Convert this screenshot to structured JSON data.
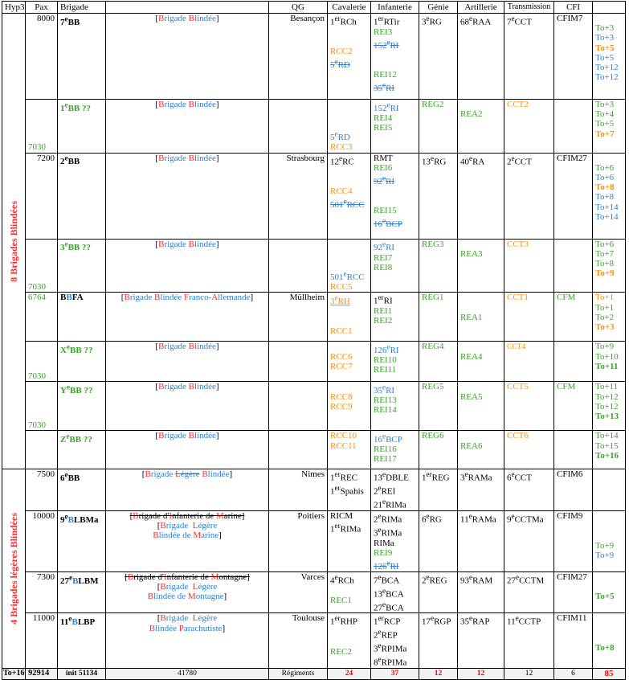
{
  "headers": [
    "Hyp3",
    "Pax",
    "Brigade",
    "",
    "QG",
    "Cavalerie",
    "Infanterie",
    "Génie",
    "Artillerie",
    "Transmission",
    "CFI",
    ""
  ],
  "side_label_8": "8 Brigades Blindées",
  "side_label_4": "4 Brigades légères Blindées",
  "rows": {
    "r7bb": {
      "pax": "8000",
      "brigade_num": "7",
      "brigade_sup": "e",
      "brigade_suf": "BB",
      "name_a": "[",
      "name_b": "Brigade",
      "name_c": "Blindée",
      "name_d": "]",
      "qg": "Besançon",
      "cav": [
        "1er RCh",
        "",
        "",
        "RCC2",
        "5e RD"
      ],
      "inf": [
        "1er RTir",
        "REI3",
        "152e RI",
        "",
        "",
        "REI12",
        "35e RI"
      ],
      "gen": [
        "3e RG"
      ],
      "art": [
        "68e RAA"
      ],
      "trans": [
        "7e CCT"
      ],
      "cfi": "CFIM7",
      "to": [
        "",
        "To+3",
        "To+3",
        "To+5",
        "To+5",
        "To+12",
        "To+12"
      ]
    },
    "r1bb": {
      "pax": "7030",
      "brigade": "1e BB ??",
      "cav": [
        "",
        "",
        "",
        "5e RD",
        "RCC3"
      ],
      "inf": [
        "152e RI",
        "REI4",
        "REI5"
      ],
      "gen": [
        "REG2"
      ],
      "art": [
        "",
        "REA2"
      ],
      "trans": [
        "CCT2"
      ],
      "to": [
        "To+3",
        "To+4",
        "To+5",
        "To+7"
      ]
    },
    "r2bb": {
      "pax": "7200",
      "brigade_num": "2",
      "brigade_sup": "e",
      "brigade_suf": "BB",
      "qg": "Strasbourg",
      "cav": [
        "12e RC",
        "",
        "",
        "RCC4",
        "501e RCC"
      ],
      "inf": [
        "RMT",
        "REI6",
        "92e RI",
        "",
        "",
        "REI15",
        "16e BCP"
      ],
      "gen": [
        "13e RG"
      ],
      "art": [
        "40e RA"
      ],
      "trans": [
        "2e CCT"
      ],
      "cfi": "CFIM27",
      "to": [
        "",
        "To+6",
        "To+6",
        "To+8",
        "To+8",
        "To+14",
        "To+14"
      ]
    },
    "r3bb": {
      "pax": "7030",
      "brigade": "3e BB ??",
      "cav": [
        "",
        "",
        "",
        "501e RCC",
        "RCC5"
      ],
      "inf": [
        "92e RI",
        "REI7",
        "REI8"
      ],
      "gen": [
        "REG3"
      ],
      "art": [
        "",
        "REA3"
      ],
      "trans": [
        "CCT3"
      ],
      "to": [
        "To+6",
        "To+7",
        "To+8",
        "To+9"
      ]
    },
    "rbbfa": {
      "pax": "6764",
      "brigade": "BBFA",
      "name": "Brigade Blindée Franco-Allemande",
      "qg": "Müllheim",
      "cav": [
        "3e RH",
        "",
        "",
        "RCC1"
      ],
      "inf": [
        "1er RI",
        "REI1",
        "REI2"
      ],
      "gen": [
        "REG1"
      ],
      "art": [
        "",
        "",
        "REA1"
      ],
      "trans": [
        "CCT1"
      ],
      "cfi": "CFM",
      "to": [
        "To+1",
        "To+1",
        "To+2",
        "To+3"
      ]
    },
    "rxbb": {
      "pax": "7030",
      "brigade": "Xe BB ??",
      "cav": [
        "",
        "RCC6",
        "RCC7"
      ],
      "inf": [
        "126e RI",
        "REI10",
        "REI11"
      ],
      "gen": [
        "REG4"
      ],
      "art": [
        "",
        "REA4"
      ],
      "trans": [
        "CCT4"
      ],
      "to": [
        "To+9",
        "To+10",
        "To+11"
      ]
    },
    "rybb": {
      "pax": "7030",
      "brigade": "Ye BB ??",
      "cav": [
        "",
        "RCC8",
        "RCC9"
      ],
      "inf": [
        "35e RI",
        "REI13",
        "REI14"
      ],
      "gen": [
        "REG5"
      ],
      "art": [
        "",
        "REA5"
      ],
      "trans": [
        "CCT5"
      ],
      "cfi": "CFM",
      "to": [
        "To+11",
        "To+12",
        "To+12",
        "To+13"
      ]
    },
    "rzbb": {
      "brigade": "Ze BB ??",
      "cav": [
        "RCC10",
        "RCC11"
      ],
      "inf": [
        "16e BCP",
        "REI16",
        "REI17"
      ],
      "gen": [
        "REG6"
      ],
      "art": [
        "",
        "REA6"
      ],
      "trans": [
        "CCT6"
      ],
      "to": [
        "To+14",
        "To+15",
        "To+16"
      ]
    },
    "r6bb": {
      "pax": "7500",
      "brigade": "6e BB",
      "name": "Brigade Légère Blindée",
      "qg": "Nimes",
      "cav": [
        "1er REC",
        "1er Spahis"
      ],
      "inf": [
        "13e DBLE",
        "2e REI",
        "21e RIMa"
      ],
      "gen": [
        "1er REG"
      ],
      "art": [
        "3e RAMa"
      ],
      "trans": [
        "6e CCT"
      ],
      "cfi": "CFIM6"
    },
    "r9blbma": {
      "pax": "10000",
      "brigade": "9e BLBMa",
      "name_old": "Brigade d'Infanterie de Marine",
      "name_new1": "Brigade Légère",
      "name_new2": "Blindée de Marine",
      "qg": "Poitiers",
      "cav": [
        "RICM",
        "1er RIMa"
      ],
      "inf": [
        "2e RIMa",
        "3e RIMa",
        "RIMa",
        "REI9",
        "126e RI"
      ],
      "gen": [
        "6e RG"
      ],
      "art": [
        "11e RAMa"
      ],
      "trans": [
        "9e CCTMa"
      ],
      "cfi": "CFIM9",
      "to": [
        "To+9",
        "To+9"
      ]
    },
    "r27blbm": {
      "pax": "7300",
      "brigade": "27e BLBM",
      "name_old": "Brigade d'Infanterie de Montagne",
      "name_new1": "Brigade Légère",
      "name_new2": "Blindée de Montagne",
      "qg": "Varces",
      "cav": [
        "4e RCh",
        "",
        "REC1"
      ],
      "inf": [
        "7e BCA",
        "13e BCA",
        "27e BCA"
      ],
      "gen": [
        "2e REG"
      ],
      "art": [
        "93e RAM"
      ],
      "trans": [
        "27e CCTM"
      ],
      "cfi": "CFIM27",
      "to": [
        "To+5"
      ]
    },
    "r11blbp": {
      "pax": "11000",
      "brigade": "11e BLBP",
      "name_new1": "Brigade Légère",
      "name_new2": "Blindée Parachutiste",
      "qg": "Toulouse",
      "cav": [
        "1er RHP",
        "",
        "",
        "REC2"
      ],
      "inf": [
        "1er RCP",
        "2e REP",
        "3e RPIMa",
        "8e RPIMa"
      ],
      "gen": [
        "17e RGP"
      ],
      "art": [
        "35e RAP"
      ],
      "trans": [
        "11e CCTP"
      ],
      "cfi": "CFIM11",
      "to": [
        "To+8"
      ]
    }
  },
  "footer": {
    "hyp": "To+16",
    "pax": "92914",
    "init": "init 51134",
    "mid": "41780",
    "reg": "Régiments",
    "cav": "24",
    "inf": "37",
    "gen": "12",
    "art": "12",
    "trans": "12",
    "cfi": "6",
    "total": "85"
  }
}
